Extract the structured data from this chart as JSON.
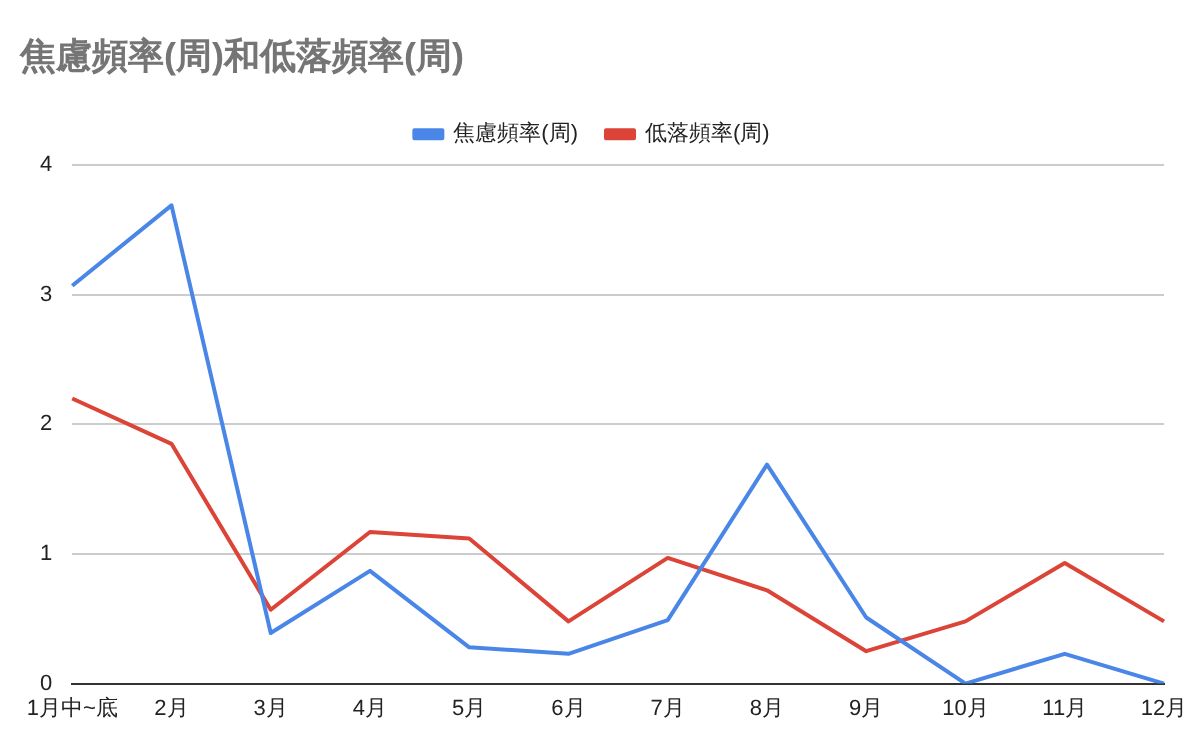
{
  "chart_data": {
    "type": "line",
    "title": "焦慮頻率(周)和低落頻率(周)",
    "categories": [
      "1月中~底",
      "2月",
      "3月",
      "4月",
      "5月",
      "6月",
      "7月",
      "8月",
      "9月",
      "10月",
      "11月",
      "12月"
    ],
    "series": [
      {
        "name": "焦慮頻率(周)",
        "color": "#4a86e8",
        "values": [
          3.07,
          3.69,
          0.39,
          0.87,
          0.28,
          0.23,
          0.49,
          1.69,
          0.51,
          0,
          0.23,
          0
        ]
      },
      {
        "name": "低落頻率(周)",
        "color": "#db4437",
        "values": [
          2.2,
          1.85,
          0.57,
          1.17,
          1.12,
          0.48,
          0.97,
          0.72,
          0.25,
          0.48,
          0.93,
          0.48
        ]
      }
    ],
    "ylim": [
      0,
      4
    ],
    "yticks": [
      0,
      1,
      2,
      3,
      4
    ],
    "grid": "y",
    "legend": "top",
    "marker": "none",
    "line_style": "solid"
  }
}
